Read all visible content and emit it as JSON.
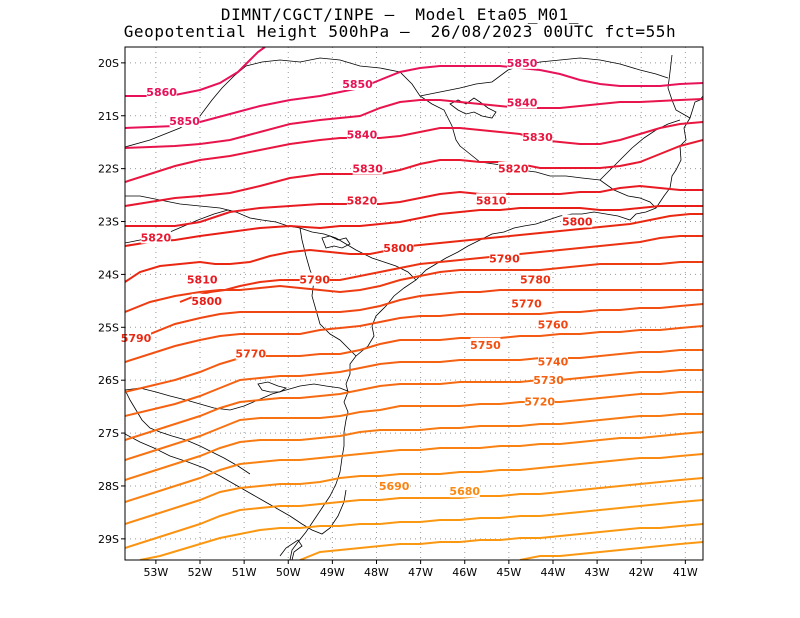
{
  "title": {
    "line1": "DIMNT/CGCT/INPE –  Model Eta05_M01_",
    "line2": "Geopotential Height 500hPa –  26/08/2023 00UTC fct=55h"
  },
  "map": {
    "lon_range": [
      -53.7,
      -40.6
    ],
    "lat_range": [
      -29.4,
      -19.7
    ],
    "lat_ticks": [
      {
        "lat": -20,
        "label": "20S"
      },
      {
        "lat": -21,
        "label": "21S"
      },
      {
        "lat": -22,
        "label": "22S"
      },
      {
        "lat": -23,
        "label": "23S"
      },
      {
        "lat": -24,
        "label": "24S"
      },
      {
        "lat": -25,
        "label": "25S"
      },
      {
        "lat": -26,
        "label": "26S"
      },
      {
        "lat": -27,
        "label": "27S"
      },
      {
        "lat": -28,
        "label": "28S"
      },
      {
        "lat": -29,
        "label": "29S"
      }
    ],
    "lon_ticks": [
      {
        "lon": -53,
        "label": "53W"
      },
      {
        "lon": -52,
        "label": "52W"
      },
      {
        "lon": -51,
        "label": "51W"
      },
      {
        "lon": -50,
        "label": "50W"
      },
      {
        "lon": -49,
        "label": "49W"
      },
      {
        "lon": -48,
        "label": "48W"
      },
      {
        "lon": -47,
        "label": "47W"
      },
      {
        "lon": -46,
        "label": "46W"
      },
      {
        "lon": -45,
        "label": "45W"
      },
      {
        "lon": -44,
        "label": "44W"
      },
      {
        "lon": -43,
        "label": "43W"
      },
      {
        "lon": -42,
        "label": "42W"
      },
      {
        "lon": -41,
        "label": "41W"
      }
    ],
    "grid": "dotted",
    "contour_colors": {
      "5860": "#e8105a",
      "5850": "#e81258",
      "5840": "#e8144c",
      "5830": "#e81640",
      "5820": "#e81830",
      "5810": "#e81b22",
      "5800": "#e81e16",
      "5790": "#ea2812",
      "5780": "#ec3212",
      "5770": "#ee3c12",
      "5760": "#f04612",
      "5750": "#f25012",
      "5740": "#f45a12",
      "5730": "#f56212",
      "5720": "#f66a12",
      "5710": "#f77212",
      "5700": "#f87a12",
      "5690": "#f98212",
      "5680": "#fa8a12",
      "5670": "#fb9212",
      "5660": "#fb9812"
    },
    "contour_labels": [
      {
        "text": "5860",
        "lon": -52.87,
        "lat": -20.55
      },
      {
        "text": "5850",
        "lon": -52.35,
        "lat": -21.1
      },
      {
        "text": "5850",
        "lon": -48.43,
        "lat": -20.4
      },
      {
        "text": "5850",
        "lon": -44.7,
        "lat": -20.0
      },
      {
        "text": "5840",
        "lon": -48.33,
        "lat": -21.35
      },
      {
        "text": "5840",
        "lon": -44.7,
        "lat": -20.75
      },
      {
        "text": "5830",
        "lon": -48.2,
        "lat": -22.0
      },
      {
        "text": "5830",
        "lon": -44.35,
        "lat": -21.4
      },
      {
        "text": "5820",
        "lon": -48.33,
        "lat": -22.6
      },
      {
        "text": "5820",
        "lon": -44.9,
        "lat": -22.0
      },
      {
        "text": "5820",
        "lon": -53.0,
        "lat": -23.3
      },
      {
        "text": "5810",
        "lon": -45.4,
        "lat": -22.6
      },
      {
        "text": "5810",
        "lon": -51.95,
        "lat": -24.1
      },
      {
        "text": "5800",
        "lon": -47.5,
        "lat": -23.5
      },
      {
        "text": "5800",
        "lon": -43.45,
        "lat": -23.0
      },
      {
        "text": "5800",
        "lon": -51.85,
        "lat": -24.5
      },
      {
        "text": "5790",
        "lon": -49.4,
        "lat": -24.1
      },
      {
        "text": "5790",
        "lon": -45.1,
        "lat": -23.7
      },
      {
        "text": "5790",
        "lon": -53.45,
        "lat": -25.2
      },
      {
        "text": "5780",
        "lon": -44.4,
        "lat": -24.1
      },
      {
        "text": "5770",
        "lon": -44.6,
        "lat": -24.55
      },
      {
        "text": "5770",
        "lon": -50.85,
        "lat": -25.5
      },
      {
        "text": "5760",
        "lon": -44.0,
        "lat": -24.95
      },
      {
        "text": "5750",
        "lon": -45.53,
        "lat": -25.33
      },
      {
        "text": "5740",
        "lon": -44.0,
        "lat": -25.65
      },
      {
        "text": "5730",
        "lon": -44.1,
        "lat": -26.0
      },
      {
        "text": "5720",
        "lon": -44.3,
        "lat": -26.4
      },
      {
        "text": "5690",
        "lon": -47.6,
        "lat": -28.0
      },
      {
        "text": "5680",
        "lon": -46.0,
        "lat": -28.1
      }
    ]
  }
}
